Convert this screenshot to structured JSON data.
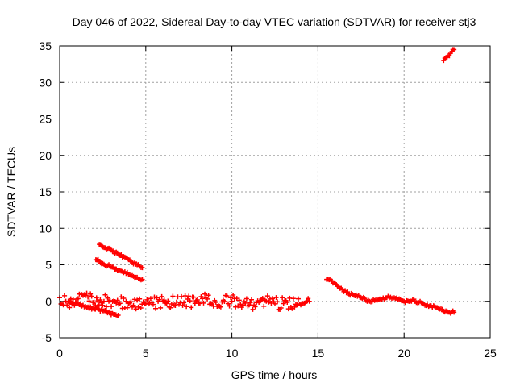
{
  "chart_data": {
    "type": "scatter",
    "title": "Day 046 of 2022, Sidereal Day-to-day VTEC variation (SDTVAR) for receiver stj3",
    "xlabel": "GPS time / hours",
    "ylabel": "SDTVAR / TECUs",
    "xlim": [
      0,
      25
    ],
    "ylim": [
      -5,
      35
    ],
    "xticks": [
      0,
      5,
      10,
      15,
      20,
      25
    ],
    "yticks": [
      -5,
      0,
      5,
      10,
      15,
      20,
      25,
      30,
      35
    ],
    "grid": true,
    "legend": "none",
    "marker": "+",
    "series_color": "#ff0000",
    "series": [
      {
        "name": "scatter-cluster",
        "x": [
          0.0,
          0.5,
          1.0,
          5.0,
          6.0,
          7.0,
          8.0,
          8.5,
          9.0,
          10.0,
          11.0,
          12.0,
          13.0,
          14.0,
          14.5
        ],
        "y": [
          0.5,
          0.0,
          0.3,
          -0.3,
          0.0,
          -0.2,
          0.2,
          0.5,
          0.1,
          0.0,
          -0.5,
          0.0,
          -0.3,
          -0.5,
          0.0
        ]
      },
      {
        "name": "upper-arc",
        "x": [
          2.3,
          3.0,
          3.5,
          4.0,
          4.5,
          4.8
        ],
        "y": [
          7.8,
          7.0,
          6.3,
          5.7,
          5.0,
          4.6
        ]
      },
      {
        "name": "lower-arc",
        "x": [
          2.1,
          2.5,
          3.0,
          3.5,
          4.0,
          4.5,
          4.8
        ],
        "y": [
          5.7,
          5.2,
          4.7,
          4.2,
          3.7,
          3.3,
          3.0
        ]
      },
      {
        "name": "dip-arc",
        "x": [
          0.5,
          1.5,
          2.5,
          3.2,
          3.4
        ],
        "y": [
          0.0,
          -0.7,
          -1.3,
          -1.8,
          -1.9
        ]
      },
      {
        "name": "late-track",
        "x": [
          15.5,
          15.8,
          16.2,
          16.8,
          17.5,
          18.0,
          18.5,
          19.0,
          19.5,
          20.0,
          20.5,
          21.0,
          21.5,
          22.0,
          22.5,
          22.9
        ],
        "y": [
          3.0,
          2.8,
          2.0,
          1.0,
          0.5,
          0.0,
          0.2,
          0.5,
          0.4,
          0.0,
          0.2,
          -0.2,
          -0.6,
          -1.0,
          -1.4,
          -1.5
        ]
      },
      {
        "name": "top-track",
        "x": [
          22.3,
          22.5,
          22.7,
          22.9
        ],
        "y": [
          33.0,
          33.5,
          34.0,
          34.5
        ]
      }
    ]
  }
}
